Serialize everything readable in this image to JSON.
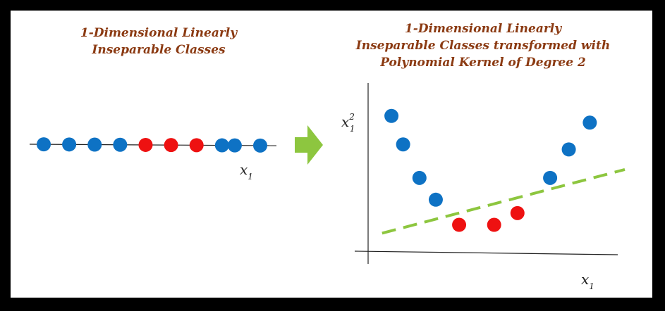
{
  "left_panel": {
    "title_lines": [
      "1-Dimensional Linearly",
      "Inseparable Classes"
    ],
    "axis_label": {
      "base": "x",
      "subscript": "1"
    },
    "points": [
      {
        "x": 1,
        "class": "blue"
      },
      {
        "x": 2,
        "class": "blue"
      },
      {
        "x": 3,
        "class": "blue"
      },
      {
        "x": 4,
        "class": "blue"
      },
      {
        "x": 5,
        "class": "red"
      },
      {
        "x": 6,
        "class": "red"
      },
      {
        "x": 7,
        "class": "red"
      },
      {
        "x": 8,
        "class": "blue"
      },
      {
        "x": 8.5,
        "class": "blue"
      },
      {
        "x": 9.5,
        "class": "blue"
      }
    ]
  },
  "arrow": {
    "color": "#8dc63f"
  },
  "right_panel": {
    "title_lines": [
      "1-Dimensional Linearly",
      "Inseparable Classes transformed with",
      "Polynomial Kernel of Degree 2"
    ],
    "x_axis_label": {
      "base": "x",
      "subscript": "1"
    },
    "y_axis_label": {
      "base": "x",
      "superscript": "2",
      "subscript": "1"
    },
    "points": [
      {
        "x": 1,
        "y": 8.2,
        "class": "blue"
      },
      {
        "x": 1.5,
        "y": 6.5,
        "class": "blue"
      },
      {
        "x": 2.2,
        "y": 4.5,
        "class": "blue"
      },
      {
        "x": 2.9,
        "y": 3.2,
        "class": "blue"
      },
      {
        "x": 3.9,
        "y": 1.7,
        "class": "red"
      },
      {
        "x": 5.4,
        "y": 1.7,
        "class": "red"
      },
      {
        "x": 6.4,
        "y": 2.4,
        "class": "red"
      },
      {
        "x": 7.8,
        "y": 4.5,
        "class": "blue"
      },
      {
        "x": 8.6,
        "y": 6.2,
        "class": "blue"
      },
      {
        "x": 9.5,
        "y": 7.8,
        "class": "blue"
      }
    ],
    "separator": {
      "x1": 0.6,
      "y1": 1.2,
      "x2": 11,
      "y2": 5.0,
      "color": "#8dc63f"
    },
    "x_range": [
      0,
      11
    ],
    "y_range": [
      0,
      10.5
    ]
  },
  "colors": {
    "blue": "#0e72c4",
    "red": "#ee1111",
    "title": "#8b3a12"
  }
}
